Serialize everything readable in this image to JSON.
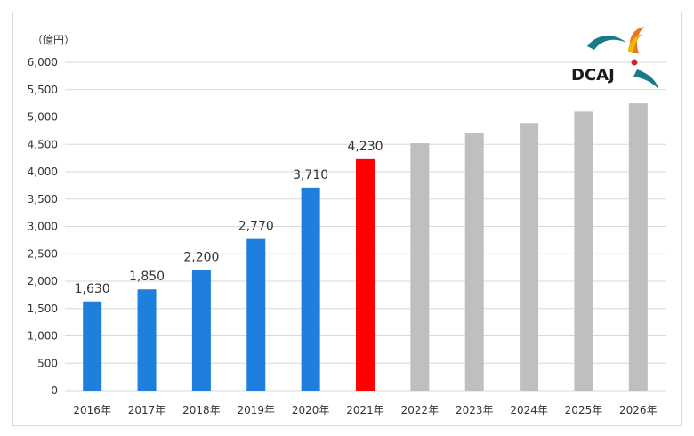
{
  "chart_data": {
    "type": "bar",
    "unit_label": "（億円）",
    "categories": [
      "2016年",
      "2017年",
      "2018年",
      "2019年",
      "2020年",
      "2021年",
      "2022年",
      "2023年",
      "2024年",
      "2025年",
      "2026年"
    ],
    "values": [
      1630,
      1850,
      2200,
      2770,
      3710,
      4230,
      4520,
      4710,
      4890,
      5100,
      5250
    ],
    "data_labels": [
      "1,630",
      "1,850",
      "2,200",
      "2,770",
      "3,710",
      "4,230",
      "",
      "",
      "",
      "",
      ""
    ],
    "y_ticks": [
      "0",
      "500",
      "1,000",
      "1,500",
      "2,000",
      "2,500",
      "3,000",
      "3,500",
      "4,000",
      "4,500",
      "5,000",
      "5,500",
      "6,000"
    ],
    "ylim": [
      0,
      6000
    ],
    "y_step": 500,
    "grid": true,
    "bar_colors": [
      "#1e7fdc",
      "#1e7fdc",
      "#1e7fdc",
      "#1e7fdc",
      "#1e7fdc",
      "#ff0000",
      "#bfbfbf",
      "#bfbfbf",
      "#bfbfbf",
      "#bfbfbf",
      "#bfbfbf"
    ],
    "grid_color": "#d9d9d9"
  },
  "logo": {
    "text": "DCAJ",
    "colors": {
      "text": "#1a1a1a",
      "teal": "#1a7a8a",
      "orange": "#e87722",
      "gold": "#f2b705",
      "red": "#d0202e"
    }
  }
}
